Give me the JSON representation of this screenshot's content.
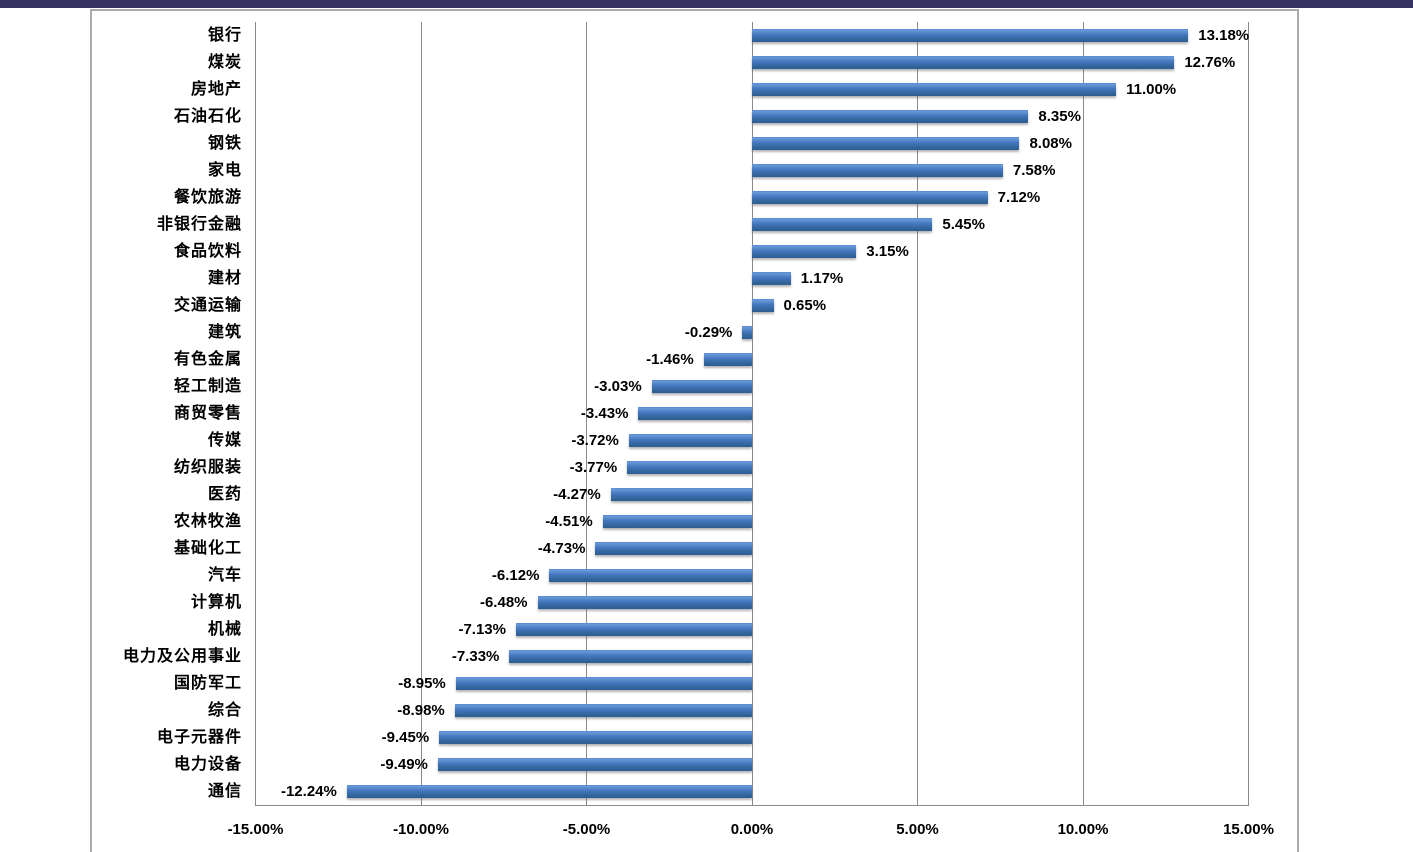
{
  "window": {
    "top_bar_color": "#35325F"
  },
  "chart_data": {
    "type": "bar",
    "orientation": "horizontal",
    "title": "",
    "xlabel": "",
    "ylabel": "",
    "xlim": [
      -15,
      15
    ],
    "grid": true,
    "legend_position": "none",
    "bar_color": "#3A6DB5",
    "bar_gradient": [
      "#6B9BD7",
      "#4478BF",
      "#2B5C94"
    ],
    "gridline_color": "#8A8A8A",
    "x_ticks": [
      {
        "value": -15,
        "label": "-15.00%"
      },
      {
        "value": -10,
        "label": "-10.00%"
      },
      {
        "value": -5,
        "label": "-5.00%"
      },
      {
        "value": 0,
        "label": "0.00%"
      },
      {
        "value": 5,
        "label": "5.00%"
      },
      {
        "value": 10,
        "label": "10.00%"
      },
      {
        "value": 15,
        "label": "15.00%"
      }
    ],
    "categories": [
      "银行",
      "煤炭",
      "房地产",
      "石油石化",
      "钢铁",
      "家电",
      "餐饮旅游",
      "非银行金融",
      "食品饮料",
      "建材",
      "交通运输",
      "建筑",
      "有色金属",
      "轻工制造",
      "商贸零售",
      "传媒",
      "纺织服装",
      "医药",
      "农林牧渔",
      "基础化工",
      "汽车",
      "计算机",
      "机械",
      "电力及公用事业",
      "国防军工",
      "综合",
      "电子元器件",
      "电力设备",
      "通信"
    ],
    "values": [
      13.18,
      12.76,
      11.0,
      8.35,
      8.08,
      7.58,
      7.12,
      5.45,
      3.15,
      1.17,
      0.65,
      -0.29,
      -1.46,
      -3.03,
      -3.43,
      -3.72,
      -3.77,
      -4.27,
      -4.51,
      -4.73,
      -6.12,
      -6.48,
      -7.13,
      -7.33,
      -8.95,
      -8.98,
      -9.45,
      -9.49,
      -12.24
    ],
    "value_labels": [
      "13.18%",
      "12.76%",
      "11.00%",
      "8.35%",
      "8.08%",
      "7.58%",
      "7.12%",
      "5.45%",
      "3.15%",
      "1.17%",
      "0.65%",
      "-0.29%",
      "-1.46%",
      "-3.03%",
      "-3.43%",
      "-3.72%",
      "-3.77%",
      "-4.27%",
      "-4.51%",
      "-4.73%",
      "-6.12%",
      "-6.48%",
      "-7.13%",
      "-7.33%",
      "-8.95%",
      "-8.98%",
      "-9.45%",
      "-9.49%",
      "-12.24%"
    ]
  }
}
